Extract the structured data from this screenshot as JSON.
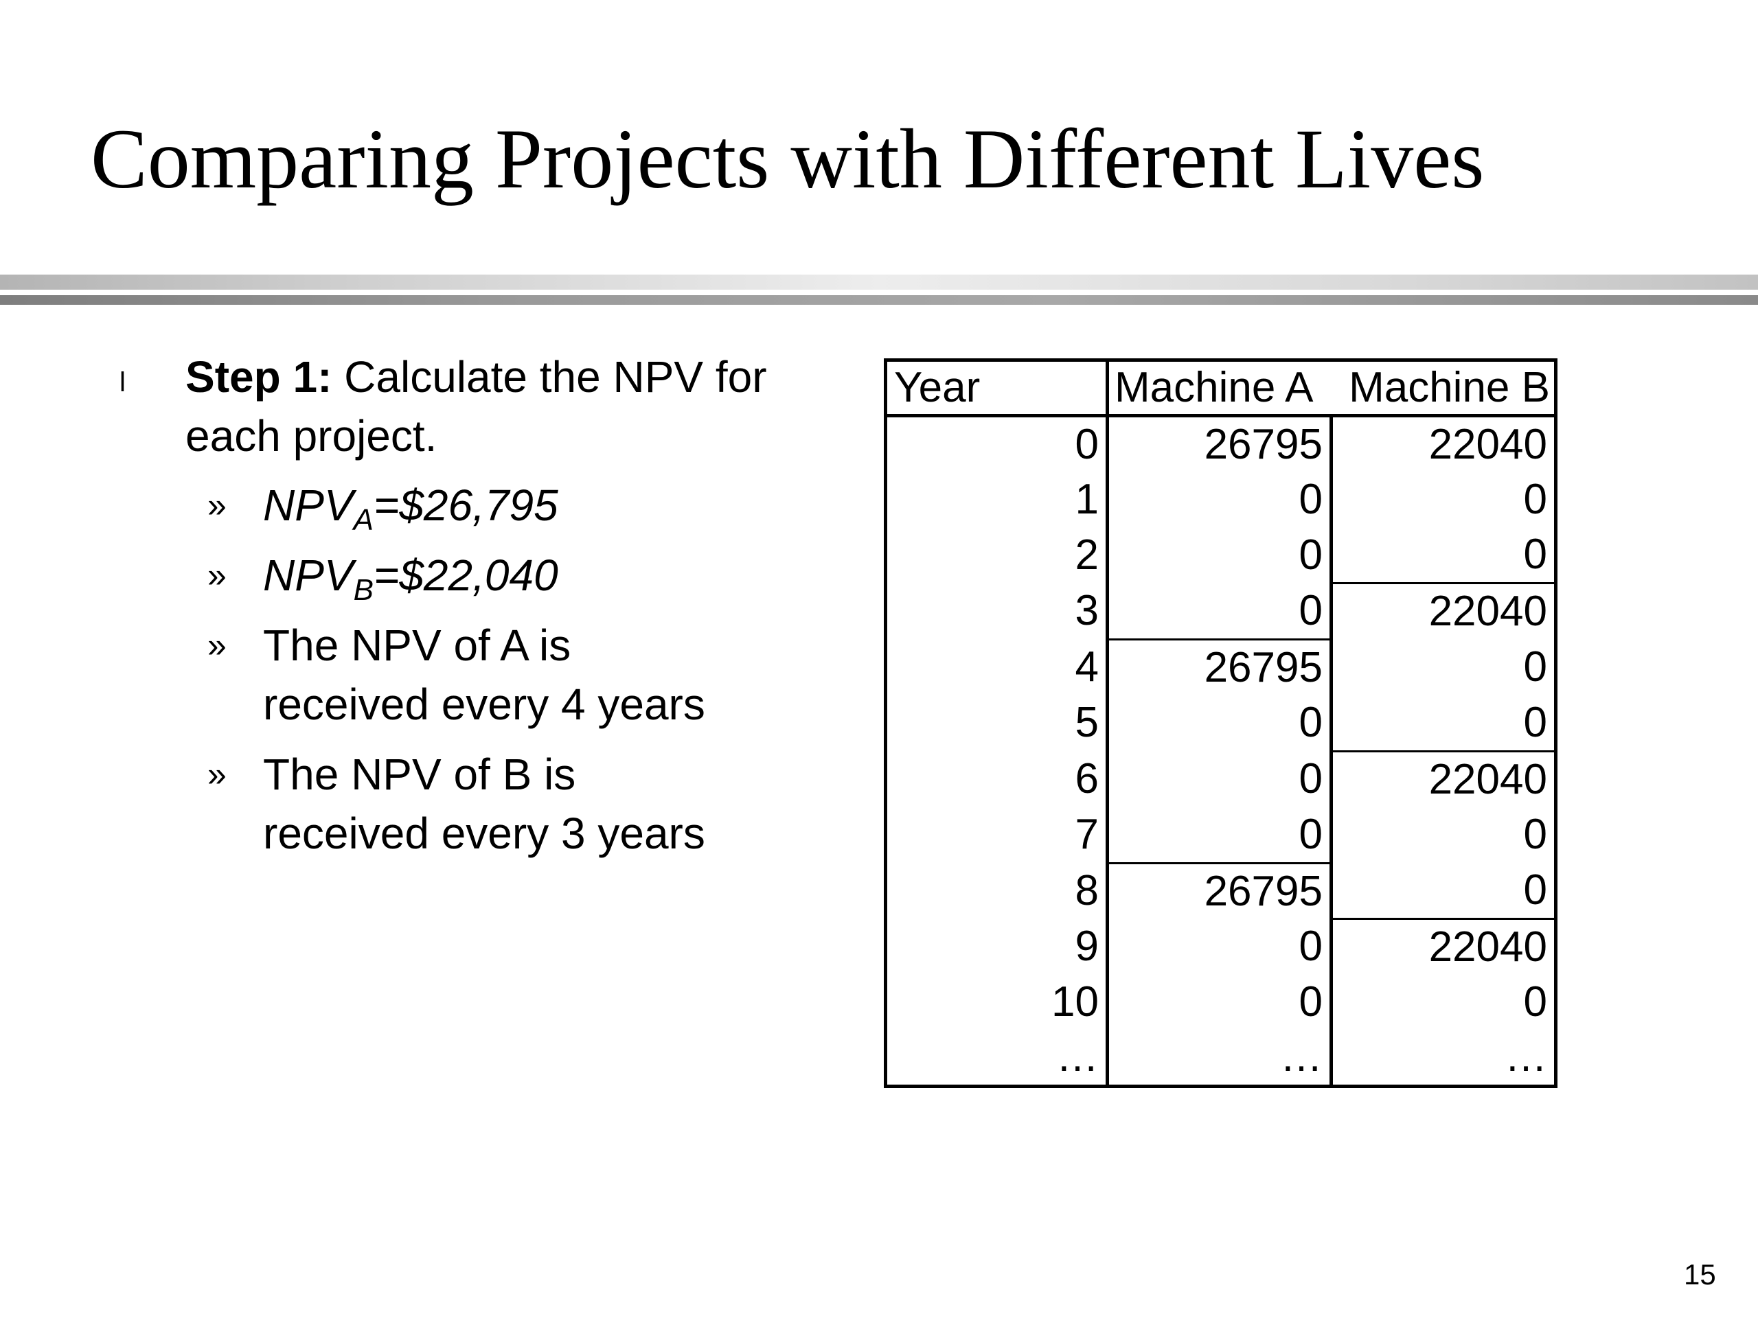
{
  "slide": {
    "title": "Comparing Projects with Different Lives",
    "page_number": "15"
  },
  "bullets": {
    "level1_marker": "l",
    "step_bold": "Step 1:",
    "step_text": " Calculate the NPV for each project.",
    "sub_marker": "»",
    "npv_a_prefix": "NPV",
    "npv_a_sub": "A",
    "npv_a_value": "=$26,795",
    "npv_b_prefix": "NPV",
    "npv_b_sub": "B",
    "npv_b_value": "=$22,040",
    "note_a_line1": "The NPV of A is",
    "note_a_line2": "received every 4 years",
    "note_b_line1": "The NPV of B is",
    "note_b_line2": "received every 3 years"
  },
  "table": {
    "headers": [
      "Year",
      "Machine A",
      "Machine B"
    ],
    "rows": [
      [
        "0",
        "26795",
        "22040"
      ],
      [
        "1",
        "0",
        "0"
      ],
      [
        "2",
        "0",
        "0"
      ],
      [
        "3",
        "0",
        "22040"
      ],
      [
        "4",
        "26795",
        "0"
      ],
      [
        "5",
        "0",
        "0"
      ],
      [
        "6",
        "0",
        "22040"
      ],
      [
        "7",
        "0",
        "0"
      ],
      [
        "8",
        "26795",
        "0"
      ],
      [
        "9",
        "0",
        "22040"
      ],
      [
        "10",
        "0",
        "0"
      ],
      [
        "…",
        "…",
        "…"
      ]
    ]
  }
}
